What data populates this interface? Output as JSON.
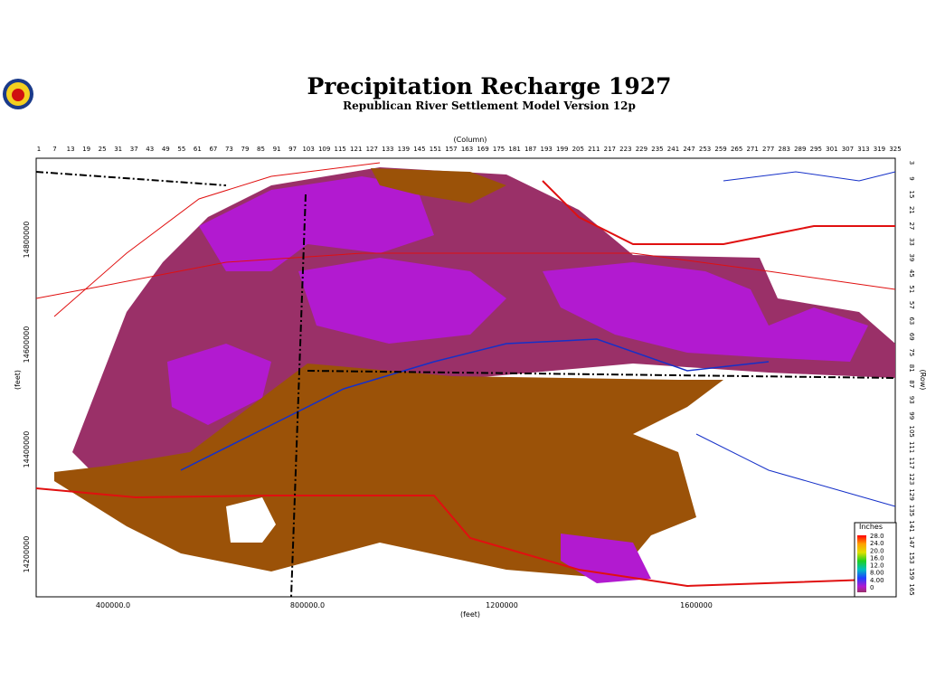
{
  "title": "Precipitation Recharge 1927",
  "subtitle": "Republican River Settlement Model Version 12p",
  "column_axis": {
    "label": "(Column)",
    "ticks": [
      1,
      7,
      13,
      19,
      25,
      31,
      37,
      43,
      49,
      55,
      61,
      67,
      73,
      79,
      85,
      91,
      97,
      103,
      109,
      115,
      121,
      127,
      133,
      139,
      145,
      151,
      157,
      163,
      169,
      175,
      181,
      187,
      193,
      199,
      205,
      211,
      217,
      223,
      229,
      235,
      241,
      247,
      253,
      259,
      265,
      271,
      277,
      283,
      289,
      295,
      301,
      307,
      313,
      319,
      325
    ]
  },
  "row_axis": {
    "label": "(Row)",
    "ticks": [
      3,
      9,
      15,
      21,
      27,
      33,
      39,
      45,
      51,
      57,
      63,
      69,
      75,
      81,
      87,
      93,
      99,
      105,
      111,
      117,
      123,
      129,
      135,
      141,
      147,
      153,
      159,
      165
    ]
  },
  "x_axis": {
    "label": "(feet)",
    "ticks": [
      "400000.0",
      "800000.0",
      "1200000",
      "1600000"
    ]
  },
  "y_axis": {
    "label": "(feet)",
    "ticks": [
      "14800000",
      "14600000",
      "14400000",
      "14200000"
    ]
  },
  "legend": {
    "title": "Inches",
    "labels": [
      "28.0",
      "24.0",
      "20.0",
      "16.0",
      "12.0",
      "8.00",
      "4.00",
      "0"
    ]
  }
}
